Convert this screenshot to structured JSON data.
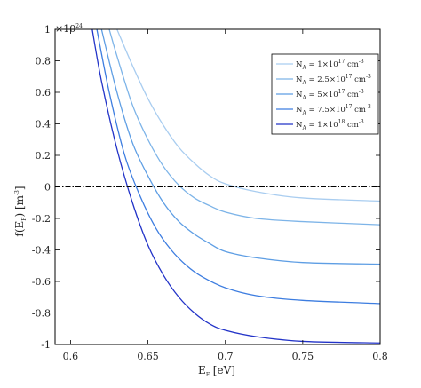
{
  "chart_data": {
    "type": "line",
    "ylabel": "f(E_F) [m^-3]",
    "ylabel_main": "f(E",
    "ylabel_sub": "F",
    "ylabel_tail": ") [m",
    "ylabel_sup": "-3",
    "ylabel_close": "]",
    "xlabel_main": "E",
    "xlabel_sub": "F",
    "xlabel_tail": " [eV]",
    "y_multiplier_base": "×10",
    "y_multiplier_exp": "24",
    "xlim": [
      0.59,
      0.8
    ],
    "ylim": [
      -1,
      1
    ],
    "x_ticks": [
      0.6,
      0.65,
      0.7,
      0.75,
      0.8
    ],
    "x_tick_labels": [
      "0.6",
      "0.65",
      "0.7",
      "0.75",
      "0.8"
    ],
    "y_ticks": [
      -1,
      -0.8,
      -0.6,
      -0.4,
      -0.2,
      0,
      0.2,
      0.4,
      0.6,
      0.8,
      1
    ],
    "y_tick_labels": [
      "-1",
      "-0.8",
      "-0.6",
      "-0.4",
      "-0.2",
      "0",
      "0.2",
      "0.4",
      "0.6",
      "0.8",
      "1"
    ],
    "reference_line": {
      "y": 0,
      "style": "dash-dot",
      "color": "#000000"
    },
    "legend_placement": "top-right",
    "grid": false,
    "series": [
      {
        "legend_main": "N",
        "legend_sub": "A",
        "legend_mid": " = 1×10",
        "legend_sup": "17",
        "legend_tail": " cm",
        "legend_sup2": "-3",
        "color": "#a9cdf0",
        "x": [
          0.63,
          0.64,
          0.65,
          0.66,
          0.67,
          0.68,
          0.69,
          0.7,
          0.72,
          0.75,
          0.8
        ],
        "y": [
          1.0,
          0.77,
          0.56,
          0.39,
          0.25,
          0.15,
          0.07,
          0.02,
          -0.03,
          -0.07,
          -0.09
        ]
      },
      {
        "legend_main": "N",
        "legend_sub": "A",
        "legend_mid": " = 2.5×10",
        "legend_sup": "17",
        "legend_tail": " cm",
        "legend_sup2": "-3",
        "color": "#7db4e8",
        "x": [
          0.625,
          0.63,
          0.64,
          0.65,
          0.66,
          0.67,
          0.68,
          0.69,
          0.7,
          0.72,
          0.75,
          0.8
        ],
        "y": [
          1.0,
          0.83,
          0.52,
          0.3,
          0.13,
          0.01,
          -0.07,
          -0.12,
          -0.16,
          -0.2,
          -0.22,
          -0.24
        ]
      },
      {
        "legend_main": "N",
        "legend_sub": "A",
        "legend_mid": " = 5×10",
        "legend_sup": "17",
        "legend_tail": " cm",
        "legend_sup2": "-3",
        "color": "#5e9ee4",
        "x": [
          0.62,
          0.63,
          0.64,
          0.65,
          0.66,
          0.67,
          0.68,
          0.69,
          0.7,
          0.72,
          0.75,
          0.8
        ],
        "y": [
          1.0,
          0.6,
          0.28,
          0.07,
          -0.1,
          -0.22,
          -0.3,
          -0.36,
          -0.41,
          -0.45,
          -0.48,
          -0.49
        ]
      },
      {
        "legend_main": "N",
        "legend_sub": "A",
        "legend_mid": " = 7.5×10",
        "legend_sup": "17",
        "legend_tail": " cm",
        "legend_sup2": "-3",
        "color": "#3d7de0",
        "x": [
          0.617,
          0.625,
          0.635,
          0.645,
          0.655,
          0.665,
          0.675,
          0.685,
          0.7,
          0.72,
          0.75,
          0.8
        ],
        "y": [
          1.0,
          0.6,
          0.2,
          -0.06,
          -0.26,
          -0.4,
          -0.5,
          -0.57,
          -0.64,
          -0.69,
          -0.72,
          -0.74
        ]
      },
      {
        "legend_main": "N",
        "legend_sub": "A",
        "legend_mid": " = 1×10",
        "legend_sup": "18",
        "legend_tail": " cm",
        "legend_sup2": "-3",
        "color": "#2233c8",
        "x": [
          0.614,
          0.62,
          0.63,
          0.64,
          0.65,
          0.66,
          0.67,
          0.68,
          0.69,
          0.7,
          0.72,
          0.75,
          0.8
        ],
        "y": [
          1.0,
          0.67,
          0.24,
          -0.1,
          -0.37,
          -0.56,
          -0.7,
          -0.8,
          -0.87,
          -0.91,
          -0.95,
          -0.98,
          -0.99
        ]
      }
    ]
  }
}
